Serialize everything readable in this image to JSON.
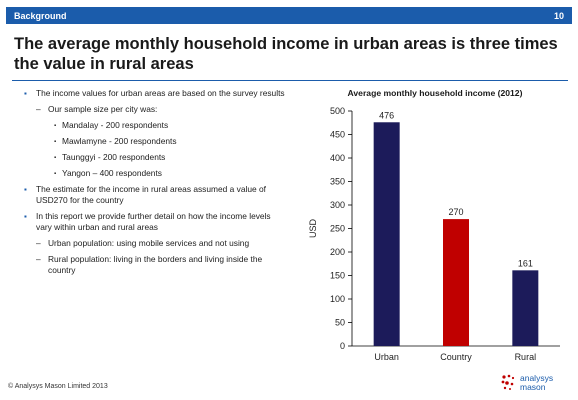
{
  "header": {
    "section": "Background",
    "page_number": "10"
  },
  "title": "The average monthly household income in urban areas is three times the value in rural areas",
  "bullets": [
    {
      "level": 1,
      "marker": "▪",
      "text": "The income values for urban areas are based on the survey results"
    },
    {
      "level": 2,
      "marker": "–",
      "text": "Our sample size per city was:"
    },
    {
      "level": 3,
      "marker": "▪",
      "text": "Mandalay - 200 respondents"
    },
    {
      "level": 3,
      "marker": "▪",
      "text": "Mawlamyne - 200 respondents"
    },
    {
      "level": 3,
      "marker": "▪",
      "text": "Taunggyi - 200 respondents"
    },
    {
      "level": 3,
      "marker": "▪",
      "text": "Yangon – 400 respondents"
    },
    {
      "level": 1,
      "marker": "▪",
      "text": "The estimate for the income in rural areas assumed a value of USD270 for the country"
    },
    {
      "level": 1,
      "marker": "▪",
      "text": "In this report we provide further detail on how the income levels vary within urban and rural areas"
    },
    {
      "level": 2,
      "marker": "–",
      "text": "Urban population: using mobile services and not using"
    },
    {
      "level": 2,
      "marker": "–",
      "text": "Rural population: living in the borders and living inside the country"
    }
  ],
  "chart_data": {
    "type": "bar",
    "title": "Average monthly household income (2012)",
    "categories": [
      "Urban",
      "Country",
      "Rural"
    ],
    "values": [
      476,
      270,
      161
    ],
    "data_labels": [
      "476",
      "270",
      "161"
    ],
    "colors": [
      "#1c1b5a",
      "#c00000",
      "#1c1b5a"
    ],
    "ylabel": "USD",
    "xlabel": "",
    "ylim": [
      0,
      500
    ],
    "yticks": [
      0,
      50,
      100,
      150,
      200,
      250,
      300,
      350,
      400,
      450,
      500
    ],
    "grid": false
  },
  "footer": {
    "copyright": "© Analysys Mason Limited 2013"
  },
  "logo": {
    "line1": "analysys",
    "line2": "mason",
    "color": "#1b5cab"
  }
}
